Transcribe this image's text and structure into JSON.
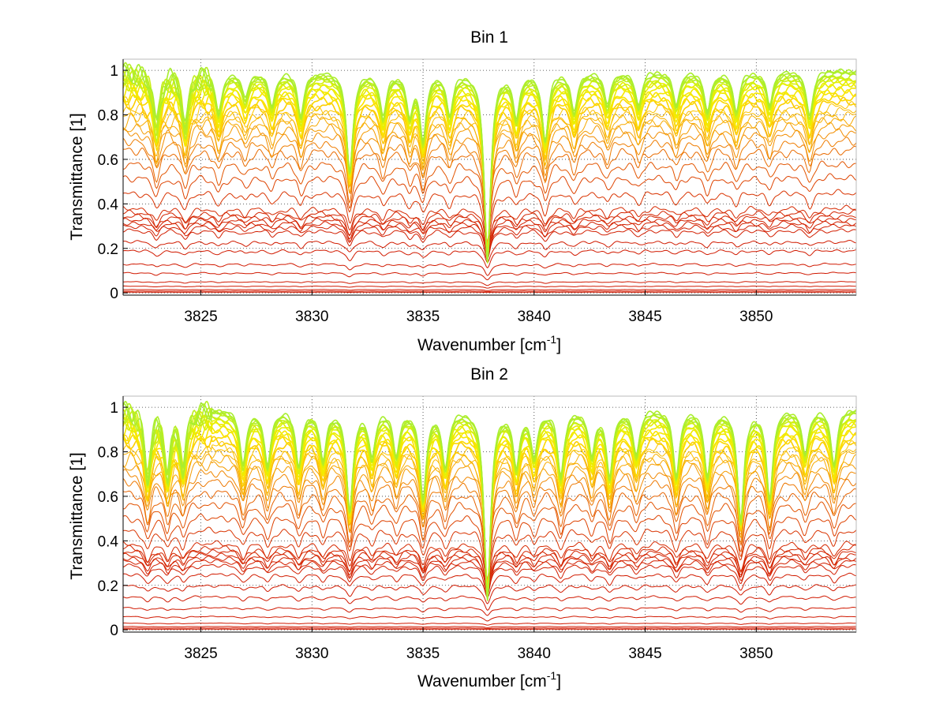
{
  "chart_data": [
    {
      "type": "line",
      "title": "Bin 1",
      "xlabel_base": "Wavenumber [cm",
      "xlabel_sup": "-1",
      "xlabel_close": "]",
      "ylabel": "Transmittance [1]",
      "xlim": [
        3821.5,
        3854.5
      ],
      "ylim": [
        -0.01,
        1.05
      ],
      "xticks": [
        3825,
        3830,
        3835,
        3840,
        3845,
        3850
      ],
      "yticks": [
        0,
        0.2,
        0.4,
        0.6,
        0.8,
        1
      ],
      "ytick_labels": [
        "0",
        "0.2",
        "0.4",
        "0.6",
        "0.8",
        "1"
      ],
      "grid": true,
      "n_series": 40,
      "series_levels": [
        0.003,
        0.008,
        0.015,
        0.03,
        0.05,
        0.09,
        0.13,
        0.19,
        0.23,
        0.28,
        0.3,
        0.315,
        0.33,
        0.345,
        0.36,
        0.38,
        0.45,
        0.52,
        0.58,
        0.64,
        0.68,
        0.72,
        0.75,
        0.78,
        0.8,
        0.82,
        0.84,
        0.86,
        0.88,
        0.9,
        0.915,
        0.93,
        0.945,
        0.955,
        0.965,
        0.975,
        0.983,
        0.99,
        0.995,
        1.0
      ],
      "absorption_lines_cm1": [
        3823.0,
        3824.3,
        3825.8,
        3827.0,
        3828.2,
        3829.5,
        3831.7,
        3833.2,
        3834.4,
        3835.0,
        3836.2,
        3837.9,
        3839.2,
        3840.5,
        3841.8,
        3843.3,
        3844.7,
        3846.4,
        3847.8,
        3849.1,
        3850.6,
        3852.4
      ],
      "absorption_depths": [
        0.25,
        0.25,
        0.18,
        0.12,
        0.15,
        0.2,
        0.45,
        0.2,
        0.18,
        0.3,
        0.18,
        0.85,
        0.2,
        0.3,
        0.18,
        0.15,
        0.15,
        0.15,
        0.18,
        0.18,
        0.15,
        0.2
      ],
      "color_scale": [
        "#d01800",
        "#e04a00",
        "#ee7a00",
        "#f6a400",
        "#fcc400",
        "#fbe400",
        "#e8f000",
        "#a8ee30"
      ]
    },
    {
      "type": "line",
      "title": "Bin 2",
      "xlabel_base": "Wavenumber [cm",
      "xlabel_sup": "-1",
      "xlabel_close": "]",
      "ylabel": "Transmittance [1]",
      "xlim": [
        3821.5,
        3854.5
      ],
      "ylim": [
        -0.01,
        1.05
      ],
      "xticks": [
        3825,
        3830,
        3835,
        3840,
        3845,
        3850
      ],
      "yticks": [
        0,
        0.2,
        0.4,
        0.6,
        0.8,
        1
      ],
      "ytick_labels": [
        "0",
        "0.2",
        "0.4",
        "0.6",
        "0.8",
        "1"
      ],
      "grid": true,
      "n_series": 40,
      "series_levels": [
        0.003,
        0.008,
        0.015,
        0.03,
        0.06,
        0.1,
        0.15,
        0.2,
        0.25,
        0.29,
        0.31,
        0.325,
        0.34,
        0.355,
        0.37,
        0.39,
        0.45,
        0.51,
        0.57,
        0.62,
        0.67,
        0.71,
        0.75,
        0.78,
        0.8,
        0.82,
        0.84,
        0.86,
        0.88,
        0.9,
        0.915,
        0.93,
        0.945,
        0.955,
        0.965,
        0.975,
        0.983,
        0.99,
        0.995,
        1.0
      ],
      "absorption_lines_cm1": [
        3822.6,
        3823.5,
        3824.2,
        3826.9,
        3828.0,
        3829.4,
        3830.5,
        3831.7,
        3832.7,
        3833.8,
        3835.0,
        3836.0,
        3837.9,
        3839.2,
        3840.0,
        3841.2,
        3842.6,
        3843.4,
        3844.6,
        3846.4,
        3847.8,
        3849.3,
        3850.6,
        3852.2,
        3853.5
      ],
      "absorption_depths": [
        0.3,
        0.28,
        0.25,
        0.25,
        0.25,
        0.25,
        0.22,
        0.45,
        0.2,
        0.2,
        0.4,
        0.25,
        0.85,
        0.25,
        0.2,
        0.3,
        0.2,
        0.3,
        0.2,
        0.3,
        0.3,
        0.5,
        0.4,
        0.2,
        0.25
      ],
      "color_scale": [
        "#d01800",
        "#e04a00",
        "#ee7a00",
        "#f6a400",
        "#fcc400",
        "#fbe400",
        "#e8f000",
        "#a8ee30"
      ]
    }
  ]
}
